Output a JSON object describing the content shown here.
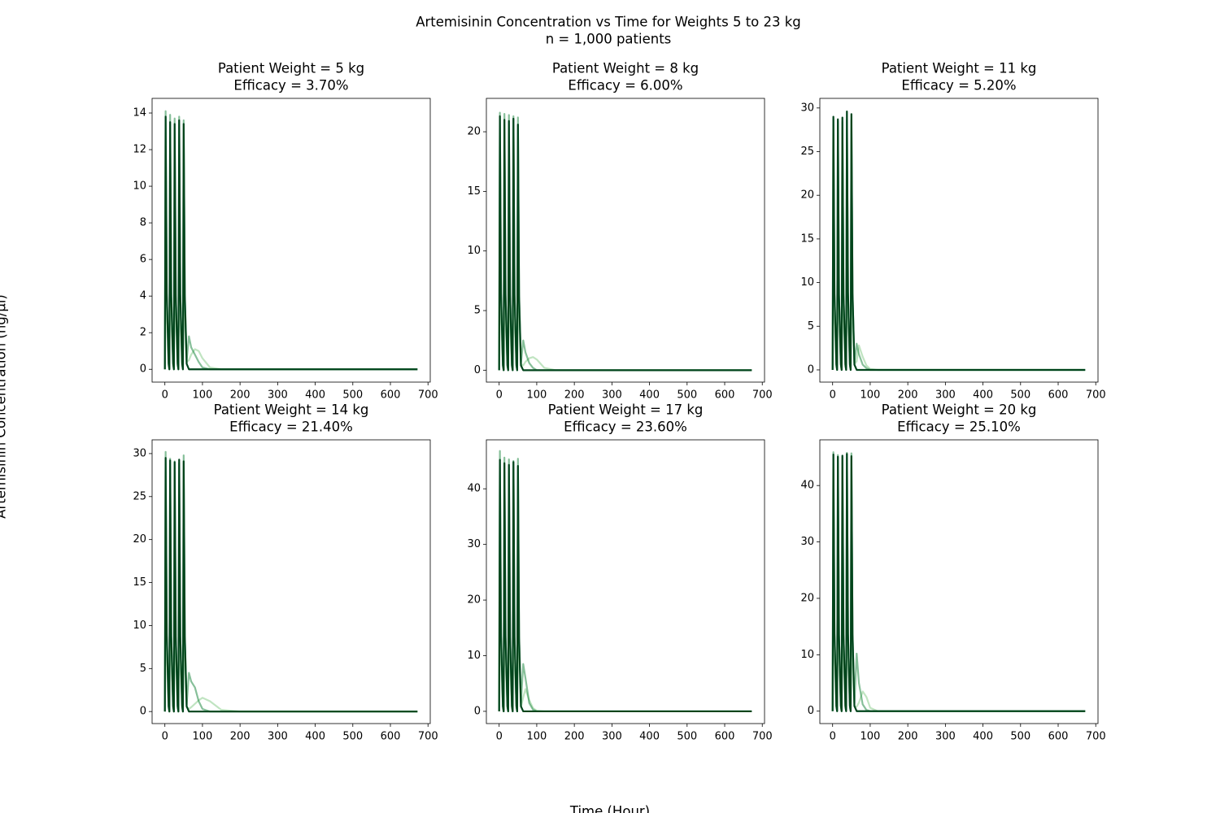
{
  "figure": {
    "title": "Artemisinin Concentration vs Time for Weights 5 to 23 kg",
    "subtitle": "n = 1,000 patients",
    "xlabel": "Time (Hour)",
    "ylabel": "Artemisinin Concentration (ng/µl)"
  },
  "chart_data": [
    {
      "type": "line",
      "title": "Patient Weight = 5 kg",
      "subtitle": "Efficacy = 3.70%",
      "x": [
        0,
        2,
        5,
        10,
        12,
        14,
        17,
        22,
        24,
        26,
        29,
        34,
        36,
        38,
        41,
        46,
        48,
        50,
        53,
        58,
        64,
        70,
        80,
        90,
        100,
        120,
        150,
        200,
        300,
        400,
        500,
        600,
        672
      ],
      "series": [
        {
          "color": "#74c476",
          "opacity": 0.45,
          "values": [
            0,
            9,
            2.7,
            0.2,
            0,
            8.8,
            2.6,
            0.2,
            0,
            8.7,
            2.6,
            0.2,
            0,
            8.9,
            2.7,
            0.2,
            0,
            8.6,
            2.6,
            0.4,
            0.5,
            0.8,
            1.1,
            1.0,
            0.6,
            0.1,
            0,
            0,
            0,
            0,
            0,
            0,
            0
          ]
        },
        {
          "color": "#238b45",
          "opacity": 0.55,
          "values": [
            0,
            14.1,
            4.2,
            0.4,
            0,
            13.9,
            4.2,
            0.4,
            0,
            13.7,
            4.1,
            0.4,
            0,
            13.8,
            4.1,
            0.4,
            0,
            13.6,
            4.1,
            0.5,
            1.8,
            1.2,
            0.8,
            0.4,
            0.1,
            0,
            0,
            0,
            0,
            0,
            0,
            0,
            0
          ]
        },
        {
          "color": "#00441b",
          "opacity": 1,
          "values": [
            0,
            13.8,
            4.1,
            0.3,
            0,
            13.5,
            4.0,
            0.3,
            0,
            13.4,
            4.0,
            0.3,
            0,
            13.6,
            4.1,
            0.3,
            0,
            13.4,
            4.0,
            0.3,
            0,
            0,
            0,
            0,
            0,
            0,
            0,
            0,
            0,
            0,
            0,
            0,
            0
          ]
        }
      ],
      "xlim": [
        -34,
        706
      ],
      "xticks": [
        0,
        100,
        200,
        300,
        400,
        500,
        600,
        700
      ],
      "ylim": [
        -0.7,
        14.8
      ],
      "yticks": [
        0,
        2,
        4,
        6,
        8,
        10,
        12,
        14
      ]
    },
    {
      "type": "line",
      "title": "Patient Weight = 8 kg",
      "subtitle": "Efficacy = 6.00%",
      "x": [
        0,
        2,
        5,
        10,
        12,
        14,
        17,
        22,
        24,
        26,
        29,
        34,
        36,
        38,
        41,
        46,
        48,
        50,
        53,
        58,
        64,
        70,
        80,
        90,
        100,
        120,
        150,
        200,
        300,
        400,
        500,
        600,
        672
      ],
      "series": [
        {
          "color": "#74c476",
          "opacity": 0.45,
          "values": [
            0,
            14,
            4.2,
            0.3,
            0,
            13.8,
            4.1,
            0.3,
            0,
            13.6,
            4.1,
            0.3,
            0,
            13.9,
            4.2,
            0.3,
            0,
            13.5,
            4.1,
            0.5,
            0.4,
            0.7,
            1.0,
            1.1,
            0.9,
            0.2,
            0,
            0,
            0,
            0,
            0,
            0,
            0
          ]
        },
        {
          "color": "#238b45",
          "opacity": 0.55,
          "values": [
            0,
            21.6,
            6.5,
            0.5,
            0,
            21.5,
            6.4,
            0.5,
            0,
            21.4,
            6.4,
            0.5,
            0,
            21.3,
            6.4,
            0.5,
            0,
            21.2,
            6.4,
            0.6,
            2.5,
            1.5,
            0.6,
            0.2,
            0,
            0,
            0,
            0,
            0,
            0,
            0,
            0,
            0
          ]
        },
        {
          "color": "#00441b",
          "opacity": 1,
          "values": [
            0,
            21.3,
            6.4,
            0.4,
            0,
            21.0,
            6.3,
            0.4,
            0,
            20.9,
            6.3,
            0.4,
            0,
            21.1,
            6.3,
            0.4,
            0,
            20.6,
            6.2,
            0.4,
            0,
            0,
            0,
            0,
            0,
            0,
            0,
            0,
            0,
            0,
            0,
            0,
            0
          ]
        }
      ],
      "xlim": [
        -34,
        706
      ],
      "xticks": [
        0,
        100,
        200,
        300,
        400,
        500,
        600,
        700
      ],
      "ylim": [
        -1.0,
        22.8
      ],
      "yticks": [
        0,
        5,
        10,
        15,
        20
      ]
    },
    {
      "type": "line",
      "title": "Patient Weight = 11 kg",
      "subtitle": "Efficacy = 5.20%",
      "x": [
        0,
        2,
        5,
        10,
        12,
        14,
        17,
        22,
        24,
        26,
        29,
        34,
        36,
        38,
        41,
        46,
        48,
        50,
        53,
        58,
        64,
        70,
        80,
        90,
        100,
        120,
        150,
        200,
        300,
        400,
        500,
        600,
        672
      ],
      "series": [
        {
          "color": "#74c476",
          "opacity": 0.45,
          "values": [
            0,
            19,
            5.7,
            0.4,
            0,
            18.8,
            5.6,
            0.4,
            0,
            18.7,
            5.6,
            0.4,
            0,
            19.2,
            5.8,
            0.4,
            0,
            18.9,
            5.7,
            0.6,
            1.0,
            2.8,
            1.5,
            0.5,
            0.1,
            0,
            0,
            0,
            0,
            0,
            0,
            0,
            0
          ]
        },
        {
          "color": "#238b45",
          "opacity": 0.55,
          "values": [
            0,
            28.8,
            8.6,
            0.7,
            0,
            28.5,
            8.5,
            0.7,
            0,
            28.4,
            8.5,
            0.7,
            0,
            28.6,
            8.6,
            0.7,
            0,
            28.6,
            8.6,
            0.8,
            3.0,
            1.8,
            0.6,
            0.2,
            0,
            0,
            0,
            0,
            0,
            0,
            0,
            0,
            0
          ]
        },
        {
          "color": "#00441b",
          "opacity": 1,
          "values": [
            0,
            29,
            8.7,
            0.6,
            0,
            28.7,
            8.6,
            0.6,
            0,
            28.9,
            8.7,
            0.6,
            0,
            29.6,
            8.9,
            0.6,
            0,
            29.3,
            8.8,
            0.6,
            0,
            0,
            0,
            0,
            0,
            0,
            0,
            0,
            0,
            0,
            0,
            0,
            0
          ]
        }
      ],
      "xlim": [
        -34,
        706
      ],
      "xticks": [
        0,
        100,
        200,
        300,
        400,
        500,
        600,
        700
      ],
      "ylim": [
        -1.4,
        31.1
      ],
      "yticks": [
        0,
        5,
        10,
        15,
        20,
        25,
        30
      ]
    },
    {
      "type": "line",
      "title": "Patient Weight = 14 kg",
      "subtitle": "Efficacy = 21.40%",
      "x": [
        0,
        2,
        5,
        10,
        12,
        14,
        17,
        22,
        24,
        26,
        29,
        34,
        36,
        38,
        41,
        46,
        48,
        50,
        53,
        58,
        64,
        70,
        80,
        90,
        100,
        120,
        150,
        200,
        300,
        400,
        500,
        600,
        672
      ],
      "series": [
        {
          "color": "#74c476",
          "opacity": 0.45,
          "values": [
            0,
            19.5,
            5.9,
            0.4,
            0,
            19.2,
            5.8,
            0.4,
            0,
            19.0,
            5.7,
            0.4,
            0,
            19.3,
            5.8,
            0.4,
            0,
            19.1,
            5.7,
            0.5,
            0.3,
            0.5,
            0.9,
            1.3,
            1.6,
            1.2,
            0.2,
            0,
            0,
            0,
            0,
            0,
            0
          ]
        },
        {
          "color": "#238b45",
          "opacity": 0.55,
          "values": [
            0,
            30.2,
            9.1,
            0.7,
            0,
            29.4,
            8.8,
            0.7,
            0,
            29.1,
            8.7,
            0.7,
            0,
            28.9,
            8.7,
            0.7,
            0,
            29.8,
            8.9,
            0.8,
            4.5,
            3.5,
            2.8,
            1.2,
            0.3,
            0,
            0,
            0,
            0,
            0,
            0,
            0,
            0
          ]
        },
        {
          "color": "#00441b",
          "opacity": 1,
          "values": [
            0,
            29.5,
            8.9,
            0.6,
            0,
            29.2,
            8.8,
            0.6,
            0,
            29.0,
            8.7,
            0.6,
            0,
            29.3,
            8.8,
            0.6,
            0,
            29.1,
            8.7,
            0.6,
            0,
            0,
            0,
            0,
            0,
            0,
            0,
            0,
            0,
            0,
            0,
            0,
            0
          ]
        }
      ],
      "xlim": [
        -34,
        706
      ],
      "xticks": [
        0,
        100,
        200,
        300,
        400,
        500,
        600,
        700
      ],
      "ylim": [
        -1.4,
        31.6
      ],
      "yticks": [
        0,
        5,
        10,
        15,
        20,
        25,
        30
      ]
    },
    {
      "type": "line",
      "title": "Patient Weight = 17 kg",
      "subtitle": "Efficacy = 23.60%",
      "x": [
        0,
        2,
        5,
        10,
        12,
        14,
        17,
        22,
        24,
        26,
        29,
        34,
        36,
        38,
        41,
        46,
        48,
        50,
        53,
        58,
        64,
        70,
        80,
        90,
        100,
        120,
        150,
        200,
        300,
        400,
        500,
        600,
        672
      ],
      "series": [
        {
          "color": "#74c476",
          "opacity": 0.45,
          "values": [
            0,
            30,
            9,
            0.6,
            0,
            29.6,
            8.9,
            0.6,
            0,
            29.4,
            8.8,
            0.6,
            0,
            29.7,
            8.9,
            0.6,
            0,
            29.3,
            8.8,
            0.8,
            2.5,
            4.0,
            2.0,
            0.6,
            0.1,
            0,
            0,
            0,
            0,
            0,
            0,
            0,
            0
          ]
        },
        {
          "color": "#238b45",
          "opacity": 0.55,
          "values": [
            0,
            46.8,
            14.0,
            1.0,
            0,
            45.6,
            13.7,
            1.0,
            0,
            45.3,
            13.6,
            1.0,
            0,
            45.0,
            13.5,
            1.0,
            0,
            45.4,
            13.6,
            1.5,
            8.5,
            6.0,
            1.5,
            0.3,
            0,
            0,
            0,
            0,
            0,
            0,
            0,
            0,
            0
          ]
        },
        {
          "color": "#00441b",
          "opacity": 1,
          "values": [
            0,
            45.2,
            13.6,
            0.9,
            0,
            44.6,
            13.4,
            0.9,
            0,
            44.3,
            13.3,
            0.9,
            0,
            44.8,
            13.4,
            0.9,
            0,
            44.1,
            13.2,
            0.9,
            0,
            0,
            0,
            0,
            0,
            0,
            0,
            0,
            0,
            0,
            0,
            0,
            0
          ]
        }
      ],
      "xlim": [
        -34,
        706
      ],
      "xticks": [
        0,
        100,
        200,
        300,
        400,
        500,
        600,
        700
      ],
      "ylim": [
        -2.2,
        48.8
      ],
      "yticks": [
        0,
        10,
        20,
        30,
        40
      ]
    },
    {
      "type": "line",
      "title": "Patient Weight = 20 kg",
      "subtitle": "Efficacy = 25.10%",
      "x": [
        0,
        2,
        5,
        10,
        12,
        14,
        17,
        22,
        24,
        26,
        29,
        34,
        36,
        38,
        41,
        46,
        48,
        50,
        53,
        58,
        64,
        70,
        80,
        90,
        100,
        120,
        150,
        200,
        300,
        400,
        500,
        600,
        672
      ],
      "series": [
        {
          "color": "#74c476",
          "opacity": 0.45,
          "values": [
            0,
            30.3,
            9.1,
            0.6,
            0,
            30,
            9,
            0.6,
            0,
            29.8,
            8.9,
            0.6,
            0,
            30.1,
            9,
            0.6,
            0,
            29.9,
            9,
            0.8,
            0.8,
            1.5,
            3.5,
            2.5,
            0.6,
            0,
            0,
            0,
            0,
            0,
            0,
            0,
            0
          ]
        },
        {
          "color": "#238b45",
          "opacity": 0.55,
          "values": [
            0,
            45.9,
            13.8,
            1.0,
            0,
            45.4,
            13.6,
            1.0,
            0,
            45.0,
            13.5,
            1.0,
            0,
            45.8,
            13.7,
            1.0,
            0,
            45.7,
            13.7,
            1.4,
            10.2,
            5.0,
            1.2,
            0.2,
            0,
            0,
            0,
            0,
            0,
            0,
            0,
            0,
            0
          ]
        },
        {
          "color": "#00441b",
          "opacity": 1,
          "values": [
            0,
            45.5,
            13.7,
            0.9,
            0,
            45.1,
            13.5,
            0.9,
            0,
            45.3,
            13.6,
            0.9,
            0,
            45.6,
            13.7,
            0.9,
            0,
            45.2,
            13.6,
            0.9,
            0,
            0,
            0,
            0,
            0,
            0,
            0,
            0,
            0,
            0,
            0,
            0,
            0
          ]
        }
      ],
      "xlim": [
        -34,
        706
      ],
      "xticks": [
        0,
        100,
        200,
        300,
        400,
        500,
        600,
        700
      ],
      "ylim": [
        -2.2,
        48.1
      ],
      "yticks": [
        0,
        10,
        20,
        30,
        40
      ]
    }
  ]
}
